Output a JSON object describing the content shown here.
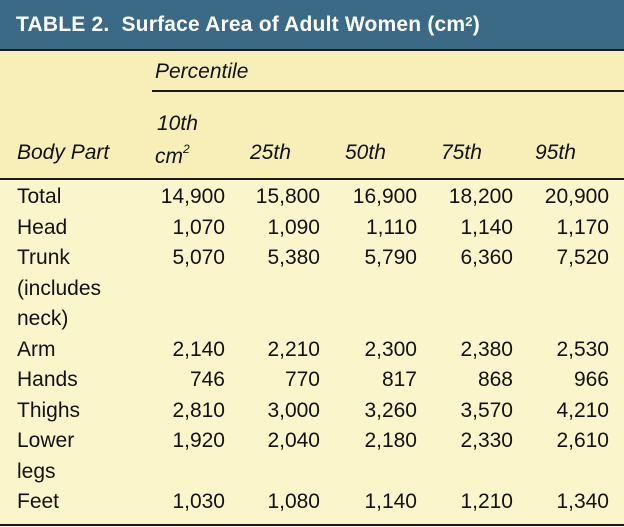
{
  "table": {
    "title_prefix": "TABLE 2.",
    "title_text": "Surface Area of Adult Women (cm",
    "title_sup": "2",
    "title_suffix": ")",
    "percentile_label": "Percentile",
    "unit_label": "cm",
    "unit_sup": "2",
    "columns": [
      "Body Part",
      "10th",
      "25th",
      "50th",
      "75th",
      "95th"
    ],
    "rows": [
      {
        "part": [
          "Total"
        ],
        "values": [
          "14,900",
          "15,800",
          "16,900",
          "18,200",
          "20,900"
        ]
      },
      {
        "part": [
          "Head"
        ],
        "values": [
          "1,070",
          "1,090",
          "1,110",
          "1,140",
          "1,170"
        ]
      },
      {
        "part": [
          "Trunk",
          "(includes",
          "neck)"
        ],
        "values": [
          "5,070",
          "5,380",
          "5,790",
          "6,360",
          "7,520"
        ]
      },
      {
        "part": [
          "Arm"
        ],
        "values": [
          "2,140",
          "2,210",
          "2,300",
          "2,380",
          "2,530"
        ]
      },
      {
        "part": [
          "Hands"
        ],
        "values": [
          "746",
          "770",
          "817",
          "868",
          "966"
        ]
      },
      {
        "part": [
          "Thighs"
        ],
        "values": [
          "2,810",
          "3,000",
          "3,260",
          "3,570",
          "4,210"
        ]
      },
      {
        "part": [
          "Lower",
          "legs"
        ],
        "values": [
          "1,920",
          "2,040",
          "2,180",
          "2,330",
          "2,610"
        ]
      },
      {
        "part": [
          "Feet"
        ],
        "values": [
          "1,030",
          "1,080",
          "1,140",
          "1,210",
          "1,340"
        ]
      }
    ]
  }
}
